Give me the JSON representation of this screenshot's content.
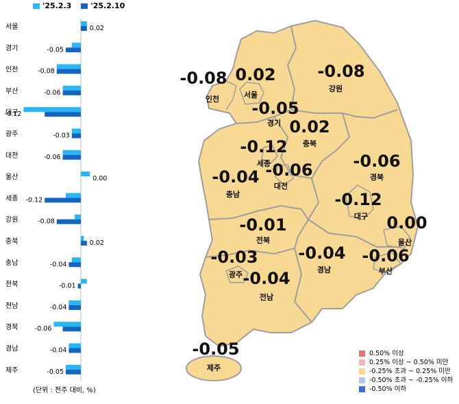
{
  "legend": {
    "series": [
      {
        "name": "'25.2.3",
        "color": "#29b6f6"
      },
      {
        "name": "'25.2.10",
        "color": "#1565c0"
      }
    ]
  },
  "unit_note": "(단위 : 전주 대비, %)",
  "chart_data": {
    "type": "bar",
    "orientation": "horizontal",
    "categories": [
      "서울",
      "경기",
      "인천",
      "부산",
      "대구",
      "광주",
      "대전",
      "울산",
      "세종",
      "강원",
      "충북",
      "충남",
      "전북",
      "전남",
      "경북",
      "경남",
      "제주"
    ],
    "series": [
      {
        "name": "'25.2.3",
        "values": [
          0.02,
          -0.03,
          -0.08,
          -0.06,
          -0.19,
          -0.03,
          -0.06,
          0.03,
          -0.05,
          -0.02,
          0.01,
          -0.03,
          0.02,
          -0.04,
          -0.09,
          -0.04,
          -0.05
        ]
      },
      {
        "name": "'25.2.10",
        "values": [
          0.02,
          -0.05,
          -0.08,
          -0.06,
          -0.12,
          -0.03,
          -0.06,
          0.0,
          -0.12,
          -0.08,
          0.02,
          -0.04,
          -0.01,
          -0.04,
          -0.06,
          -0.04,
          -0.05
        ]
      }
    ],
    "data_labels": [
      "0.02",
      "-0.05",
      "-0.08",
      "-0.06",
      "-0.12",
      "-0.03",
      "-0.06",
      "0.00",
      "-0.12",
      "-0.08",
      "0.02",
      "-0.04",
      "-0.01",
      "-0.04",
      "-0.06",
      "-0.04",
      "-0.05"
    ]
  },
  "map": {
    "regions": [
      {
        "name": "인천",
        "value": "-0.08"
      },
      {
        "name": "서울",
        "value": "0.02"
      },
      {
        "name": "강원",
        "value": "-0.08"
      },
      {
        "name": "경기",
        "value": "-0.05"
      },
      {
        "name": "충북",
        "value": "0.02"
      },
      {
        "name": "세종",
        "value": "-0.12"
      },
      {
        "name": "경북",
        "value": "-0.06"
      },
      {
        "name": "대전",
        "value": "-0.06"
      },
      {
        "name": "충남",
        "value": "-0.04"
      },
      {
        "name": "대구",
        "value": "-0.12"
      },
      {
        "name": "전북",
        "value": "-0.01"
      },
      {
        "name": "울산",
        "value": "0.00"
      },
      {
        "name": "광주",
        "value": "-0.03"
      },
      {
        "name": "경남",
        "value": "-0.04"
      },
      {
        "name": "부산",
        "value": "-0.06"
      },
      {
        "name": "전남",
        "value": "-0.04"
      },
      {
        "name": "제주",
        "value": "-0.05"
      }
    ],
    "fill_color": "#f7d993",
    "border_color": "#9e9e9e",
    "legend": [
      {
        "label": "0.50% 이상",
        "color": "#e57373"
      },
      {
        "label": "0.25% 이상 ~ 0.50% 미만",
        "color": "#f4b6b6"
      },
      {
        "label": "-0.25% 초과 ~ 0.25% 미만",
        "color": "#f7d993"
      },
      {
        "label": "-0.50% 초과 ~ -0.25% 이하",
        "color": "#b3c7e6"
      },
      {
        "label": "-0.50% 이하",
        "color": "#3f6fcf"
      }
    ]
  }
}
